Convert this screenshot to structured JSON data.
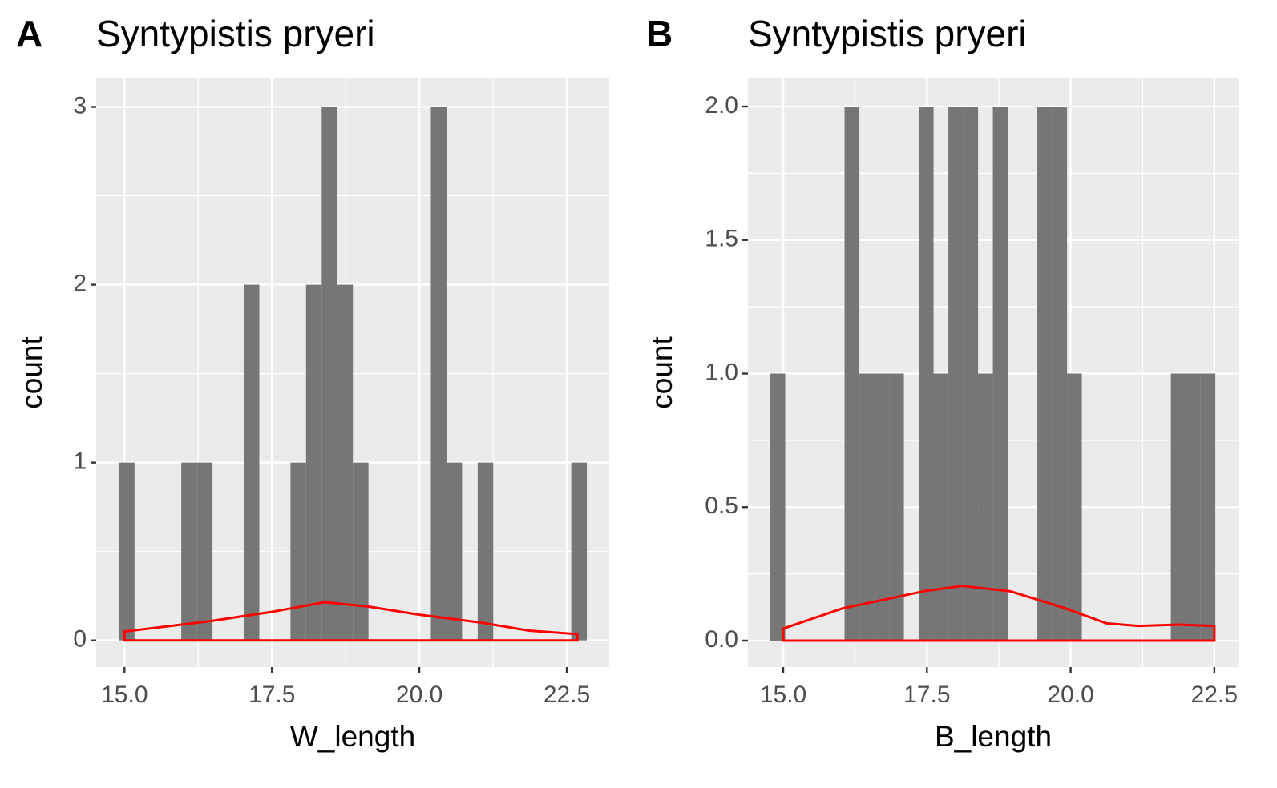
{
  "chart_data": [
    {
      "type": "histogram",
      "panel_label": "A",
      "title": "Syntypistis pryeri",
      "xlabel": "W_length",
      "ylabel": "count",
      "color": "#767676",
      "bins": [
        14.905,
        15.17,
        15.434,
        15.699,
        15.963,
        16.228,
        16.492,
        16.757,
        17.021,
        17.286,
        17.55,
        17.815,
        18.079,
        18.344,
        18.608,
        18.873,
        19.137,
        19.402,
        19.666,
        19.931,
        20.195,
        20.46,
        20.724,
        20.989,
        21.253,
        21.518,
        21.782,
        22.047,
        22.311,
        22.576,
        22.84
      ],
      "counts": [
        1,
        0,
        0,
        0,
        1,
        1,
        0,
        0,
        2,
        0,
        0,
        1,
        2,
        3,
        2,
        1,
        0,
        0,
        0,
        0,
        3,
        1,
        0,
        1,
        0,
        0,
        0,
        0,
        0,
        1
      ],
      "density": {
        "color": "#ff0000",
        "x": [
          15.0,
          16.49,
          17.49,
          18.4,
          19.14,
          19.99,
          21.05,
          21.86,
          22.68
        ],
        "values": [
          0.05,
          0.11,
          0.16,
          0.215,
          0.19,
          0.145,
          0.1,
          0.055,
          0.035
        ]
      },
      "xlim": [
        14.52,
        23.22
      ],
      "ylim": [
        -0.15,
        3.16
      ],
      "xticks": [
        {
          "value": 15,
          "label": "15.0"
        },
        17.5,
        {
          "value": 20,
          "label": "20.0"
        },
        22.5
      ],
      "yticks": [
        0,
        1,
        2,
        3
      ],
      "grid": true
    },
    {
      "type": "histogram",
      "panel_label": "B",
      "title": "Syntypistis pryeri",
      "xlabel": "B_length",
      "ylabel": "count",
      "color": "#767676",
      "bins": [
        14.777,
        15.035,
        15.293,
        15.551,
        15.809,
        16.067,
        16.325,
        16.583,
        16.841,
        17.099,
        17.357,
        17.615,
        17.873,
        18.131,
        18.389,
        18.647,
        18.905,
        19.163,
        19.421,
        19.679,
        19.937,
        20.195,
        20.453,
        20.711,
        20.969,
        21.227,
        21.485,
        21.743,
        22.001,
        22.259,
        22.517
      ],
      "counts": [
        1,
        0,
        0,
        0,
        0,
        2,
        1,
        1,
        1,
        0,
        2,
        1,
        2,
        2,
        1,
        2,
        0,
        0,
        2,
        2,
        1,
        0,
        0,
        0,
        0,
        0,
        0,
        1,
        1,
        1
      ],
      "density": {
        "color": "#ff0000",
        "x": [
          15.0,
          16.02,
          17.45,
          18.11,
          18.95,
          19.92,
          20.62,
          21.18,
          21.88,
          22.5
        ],
        "values": [
          0.045,
          0.12,
          0.185,
          0.205,
          0.185,
          0.12,
          0.065,
          0.055,
          0.06,
          0.055
        ]
      },
      "xlim": [
        14.386,
        22.92
      ],
      "ylim": [
        -0.099,
        2.105
      ],
      "xticks": [
        {
          "value": 15,
          "label": "15.0"
        },
        17.5,
        {
          "value": 20,
          "label": "20.0"
        },
        22.5
      ],
      "yticks": [
        {
          "value": 0,
          "label": "0.0"
        },
        0.5,
        {
          "value": 1,
          "label": "1.0"
        },
        1.5,
        {
          "value": 2,
          "label": "2.0"
        }
      ],
      "grid": true
    }
  ]
}
